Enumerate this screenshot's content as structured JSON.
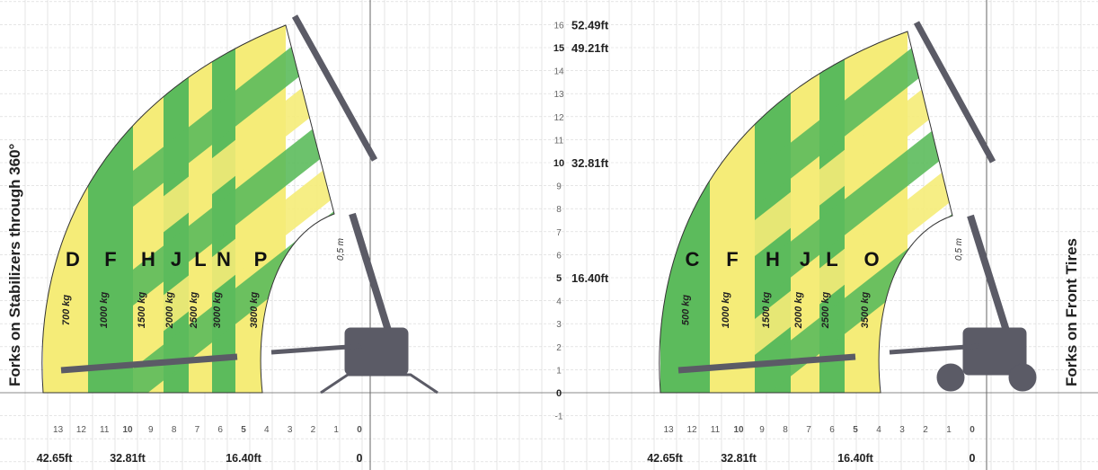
{
  "chart_data": [
    {
      "type": "area",
      "title": "Forks on Stabilizers through 360°",
      "x_unit": "m",
      "y_unit": "m",
      "x_range": [
        0,
        13
      ],
      "y_range": [
        0,
        16
      ],
      "x_ticks": [
        "13",
        "12",
        "11",
        "10",
        "9",
        "8",
        "7",
        "6",
        "5",
        "4",
        "3",
        "2",
        "1",
        "0"
      ],
      "x_ft_labels": [
        "42.65ft",
        "32.81ft",
        "16.40ft",
        "0"
      ],
      "envelope": {
        "max_height_m": 15.8,
        "max_reach_m": 13.2
      },
      "annotation": "0,5 m",
      "zones": [
        {
          "letter": "D",
          "load": "700 kg",
          "color": "#f5ec78"
        },
        {
          "letter": "F",
          "load": "1000 kg",
          "color": "#5cbb5c"
        },
        {
          "letter": "H",
          "load": "1500 kg",
          "color": "#f5ec78"
        },
        {
          "letter": "J",
          "load": "2000 kg",
          "color": "#5cbb5c"
        },
        {
          "letter": "L",
          "load": "2500 kg",
          "color": "#f5ec78"
        },
        {
          "letter": "N",
          "load": "3000 kg",
          "color": "#5cbb5c"
        },
        {
          "letter": "P",
          "load": "3800 kg",
          "color": "#f5ec78"
        }
      ]
    },
    {
      "type": "area",
      "title": "Forks on Front Tires",
      "x_unit": "m",
      "y_unit": "m",
      "x_range": [
        0,
        13
      ],
      "y_range": [
        0,
        16
      ],
      "x_ticks": [
        "13",
        "12",
        "11",
        "10",
        "9",
        "8",
        "7",
        "6",
        "5",
        "4",
        "3",
        "2",
        "1",
        "0"
      ],
      "x_ft_labels": [
        "42.65ft",
        "32.81ft",
        "16.40ft",
        "0"
      ],
      "envelope": {
        "max_height_m": 15.8,
        "max_reach_m": 13.2
      },
      "annotation": "0,5 m",
      "zones": [
        {
          "letter": "C",
          "load": "500 kg",
          "color": "#5cbb5c"
        },
        {
          "letter": "F",
          "load": "1000 kg",
          "color": "#f5ec78"
        },
        {
          "letter": "H",
          "load": "1500 kg",
          "color": "#5cbb5c"
        },
        {
          "letter": "J",
          "load": "2000 kg",
          "color": "#f5ec78"
        },
        {
          "letter": "L",
          "load": "2500 kg",
          "color": "#5cbb5c"
        },
        {
          "letter": "O",
          "load": "3500 kg",
          "color": "#f5ec78"
        }
      ]
    }
  ],
  "height_axis": {
    "ticks": [
      "16",
      "15",
      "14",
      "13",
      "12",
      "11",
      "10",
      "9",
      "8",
      "7",
      "6",
      "5",
      "4",
      "3",
      "2",
      "1",
      "0",
      "-1"
    ],
    "ft_labels": [
      {
        "m": 16,
        "text": "52.49ft"
      },
      {
        "m": 15,
        "text": "49.21ft"
      },
      {
        "m": 10,
        "text": "32.81ft"
      },
      {
        "m": 5,
        "text": "16.40ft"
      }
    ]
  },
  "colors": {
    "green": "#5cbb5c",
    "yellow": "#f5ec78",
    "machine": "#5b5b66",
    "grid": "#d6d6d6"
  }
}
